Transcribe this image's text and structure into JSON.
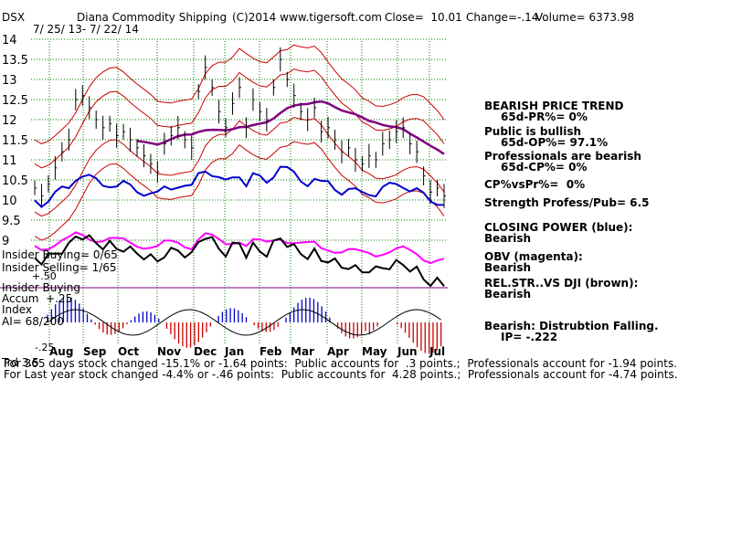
{
  "header": {
    "ticker": "DSX",
    "company": "Diana Commodity Shipping",
    "copyright": "(C)2014 www.tigersoft.com",
    "close": "Close=  10.01",
    "change": "Change=-.14",
    "volume": "Volume= 6373.98",
    "date_range": "7/ 25/ 13- 7/ 22/ 14"
  },
  "panel_labels": {
    "insider_buying": "Insider Buying= 0/65",
    "insider_selling": "Insider Selling= 1/65",
    "insider_buying_line": "Insider Buying",
    "plus50": "+.50",
    "accum": "Accum  +.25",
    "index": "Index",
    "ai": "AI= 68/200",
    "minus25": "-.25",
    "bottom_left": "Trd 3.5"
  },
  "right_panel": {
    "trend_title": "BEARISH PRICE TREND",
    "trend_value": "65d-PR%= 0%",
    "public_title": "Public is bullish",
    "public_value": "65d-OP%= 97.1%",
    "pro_title": "Professionals are bearish",
    "pro_value": "65d-CP%= 0%",
    "cp_vs_pr": "CP%vsPr%=  0%",
    "strength": "Strength Profess/Pub= 6.5",
    "closing_power_title": "CLOSING POWER (blue):",
    "closing_power_value": "Bearish",
    "obv_title": "OBV (magenta):",
    "obv_value": "Bearish",
    "relstr_title": "REL.STR..VS DJI (brown):",
    "relstr_value": "Bearish",
    "accum_title": "Bearish: Distrubtion Falling.",
    "accum_value": "IP= -.222"
  },
  "footer": {
    "line1": "For 365 days stock changed -15.1% or -1.64 points:  Public accounts for  .3 points.;  Professionals account for -1.94 points.",
    "line2": "For Last year stock changed -4.4% or -.46 points:  Public accounts for  4.28 points.;  Professionals account for -4.74 points."
  },
  "colors": {
    "price": "#000000",
    "closing_power": "#0000cc",
    "obv": "#ff00ff",
    "ma": "#800080",
    "bands": "#cc0000",
    "relstr": "#000000",
    "accum_up": "#0000cc",
    "accum_down": "#cc0000",
    "divider": "#800080",
    "grid": "#008000"
  },
  "chart_data": {
    "type": "line",
    "ylim": [
      9.3,
      14.2
    ],
    "y_ticks": [
      9,
      9.5,
      10,
      10.5,
      11,
      11.5,
      12,
      12.5,
      13,
      13.5,
      14
    ],
    "x_month_labels": [
      "Aug",
      "Sep",
      "Oct",
      "Nov",
      "Dec",
      "Jan",
      "Feb",
      "Mar",
      "Apr",
      "May",
      "Jun",
      "Jul"
    ],
    "price_close": [
      10.3,
      10.1,
      10.4,
      10.8,
      11.2,
      11.5,
      12.5,
      12.6,
      12.3,
      12.0,
      11.8,
      11.9,
      11.6,
      11.7,
      11.5,
      11.3,
      11.1,
      10.9,
      10.7,
      11.4,
      11.6,
      11.8,
      11.5,
      11.3,
      12.7,
      13.3,
      12.8,
      12.2,
      11.8,
      12.4,
      12.8,
      11.8,
      12.5,
      12.2,
      12.0,
      12.8,
      13.5,
      13.0,
      12.6,
      12.2,
      12.0,
      12.3,
      11.7,
      11.8,
      11.5,
      11.2,
      11.3,
      11.0,
      10.9,
      11.1,
      11.0,
      11.4,
      11.5,
      11.7,
      11.8,
      11.4,
      11.2,
      10.6,
      10.2,
      10.3,
      10.1
    ],
    "series_names": [
      "Price",
      "Closing Power",
      "OBV",
      "Rel.Str vs DJI",
      "Accumulation Index"
    ]
  }
}
